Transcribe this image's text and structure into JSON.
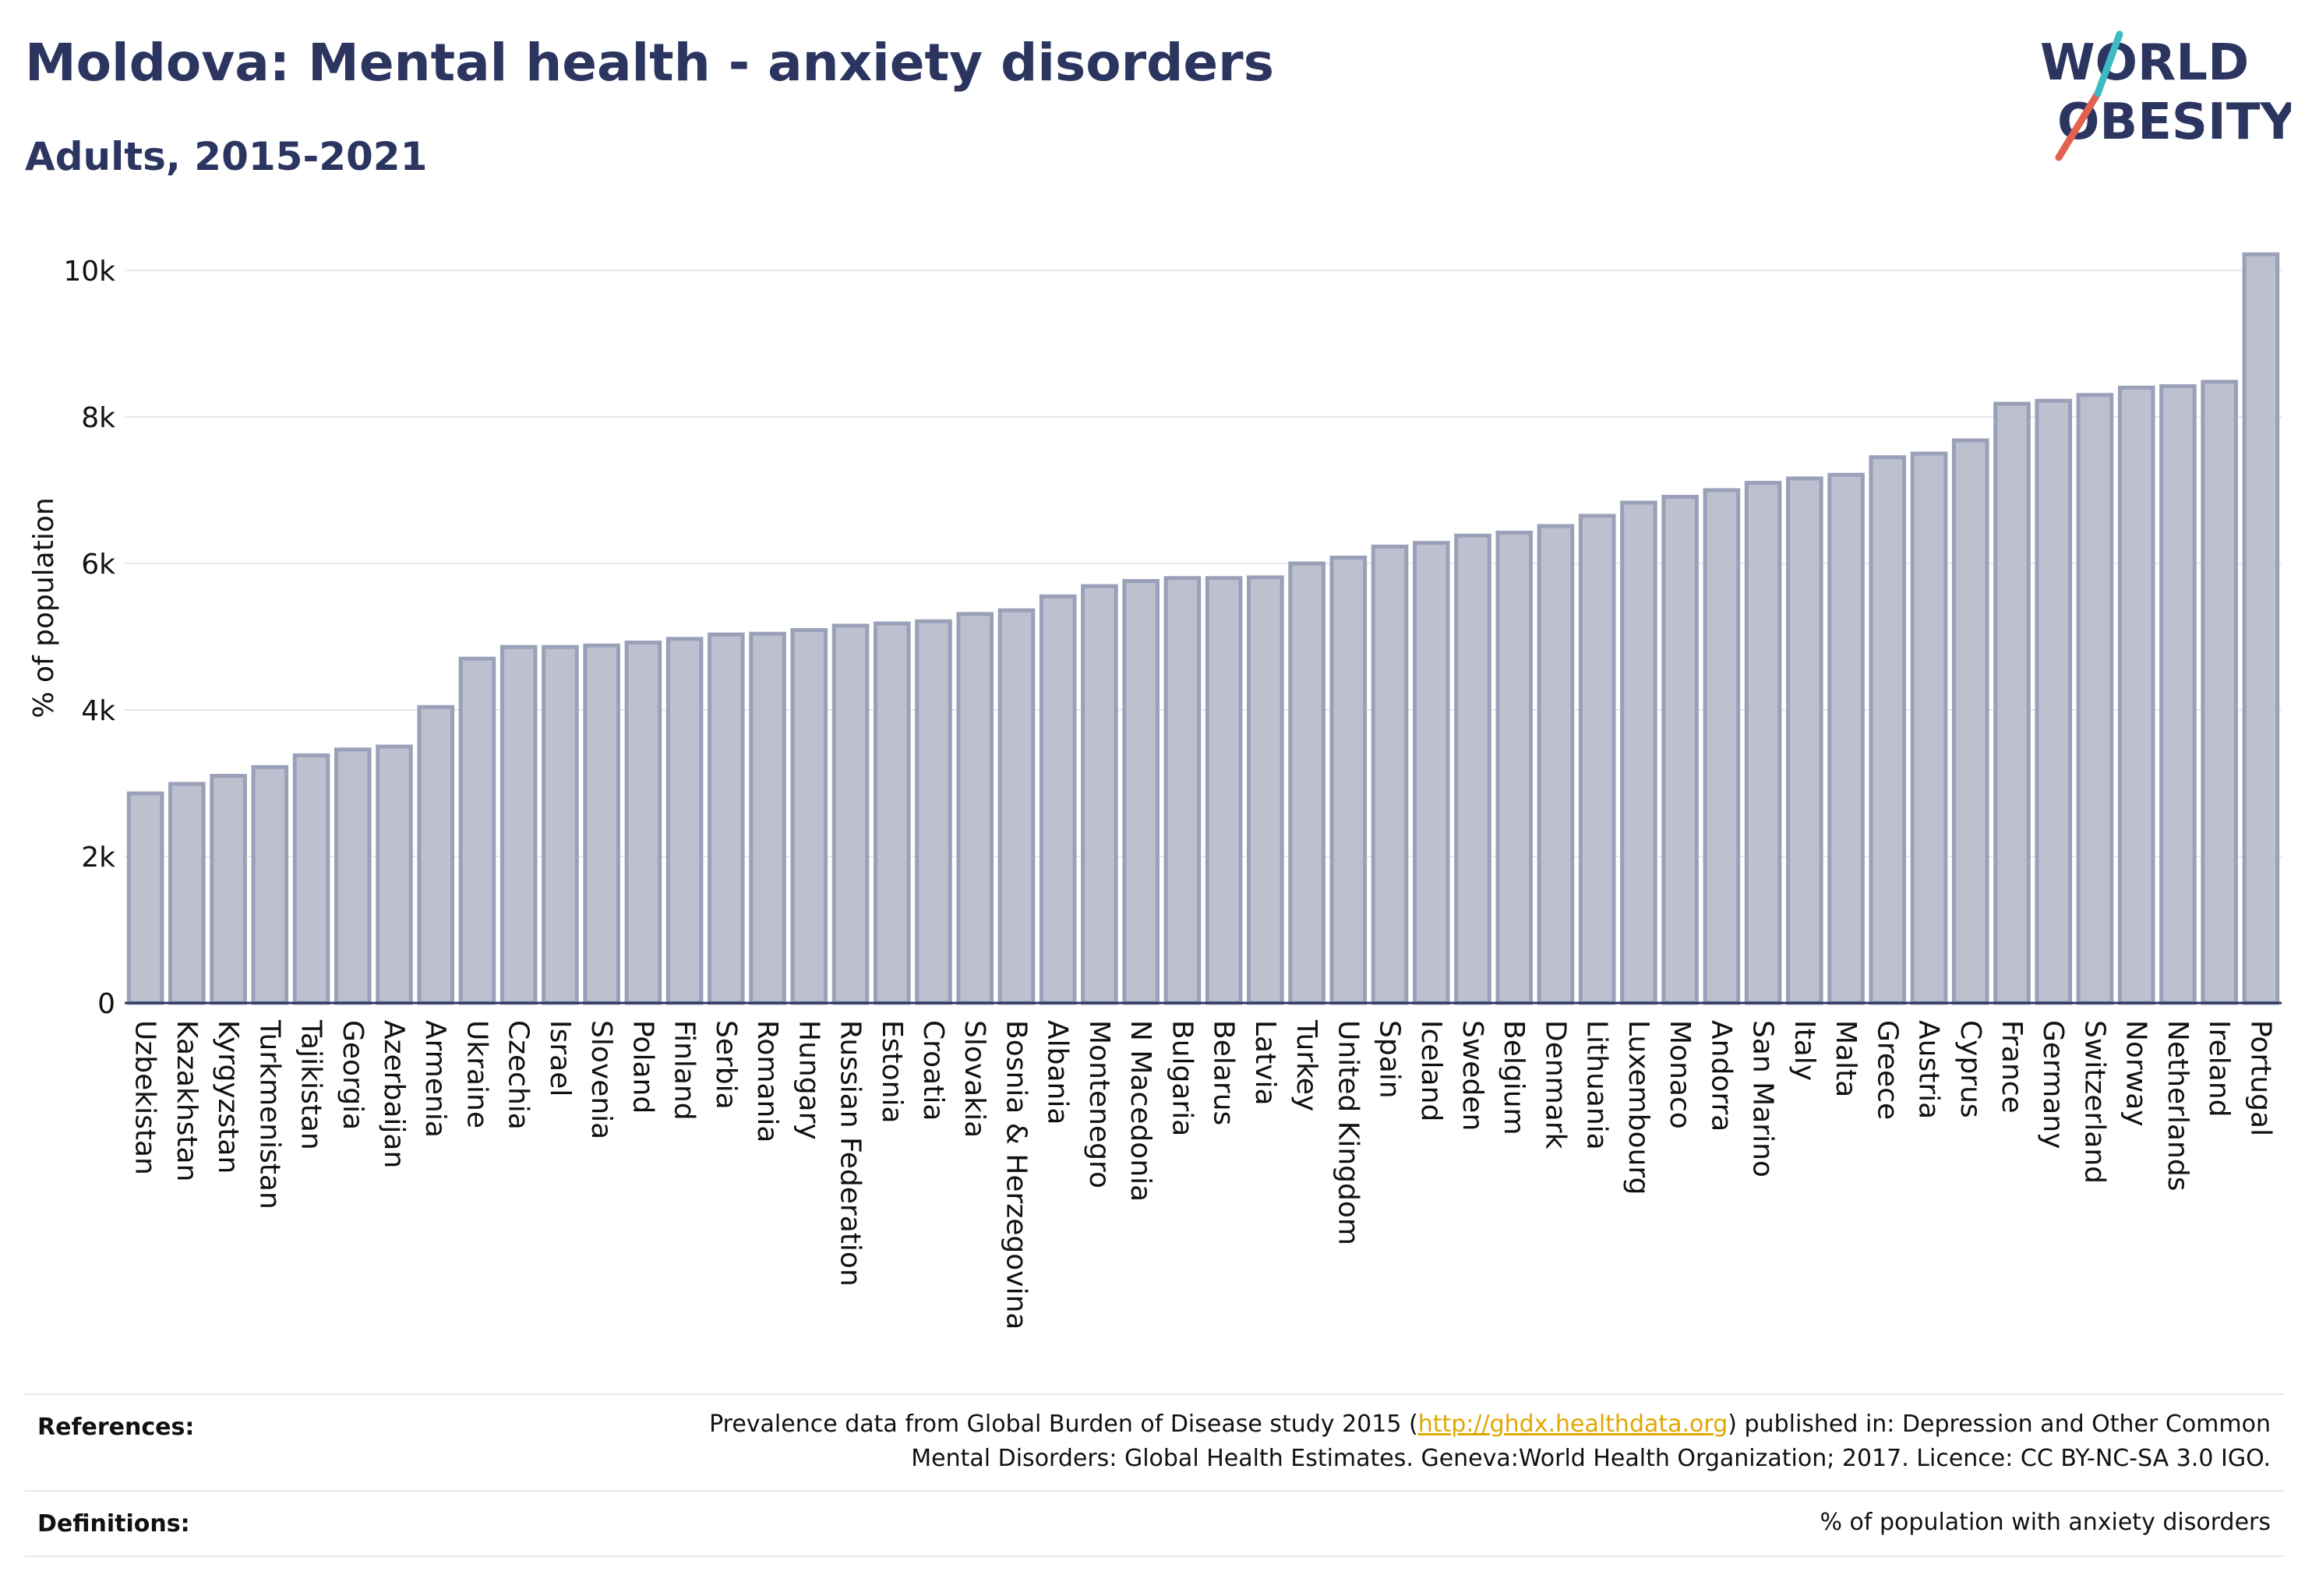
{
  "header": {
    "title": "Moldova: Mental health - anxiety disorders",
    "subtitle": "Adults, 2015-2021"
  },
  "logo": {
    "line1": "WORLD",
    "line2": "OBESITY",
    "text_color": "#2b3560",
    "slash_colors": [
      "#e4604e",
      "#3fb9c2"
    ]
  },
  "colors": {
    "bar_fill": "#bcc0cf",
    "bar_stroke": "#9aa0b8",
    "grid": "#e6e8ee",
    "axis": "#2b3560"
  },
  "chart_data": {
    "type": "bar",
    "ylabel": "% of population",
    "xlabel": "",
    "ylim": [
      0,
      10500
    ],
    "yticks": [
      0,
      2000,
      4000,
      6000,
      8000,
      10000
    ],
    "ytick_labels": [
      "0",
      "2k",
      "4k",
      "6k",
      "8k",
      "10k"
    ],
    "grid": true,
    "categories": [
      "Uzbekistan",
      "Kazakhstan",
      "Kyrgyzstan",
      "Turkmenistan",
      "Tajikistan",
      "Georgia",
      "Azerbaijan",
      "Armenia",
      "Ukraine",
      "Czechia",
      "Israel",
      "Slovenia",
      "Poland",
      "Finland",
      "Serbia",
      "Romania",
      "Hungary",
      "Russian Federation",
      "Estonia",
      "Croatia",
      "Slovakia",
      "Bosnia & Herzegovina",
      "Albania",
      "Montenegro",
      "N Macedonia",
      "Bulgaria",
      "Belarus",
      "Latvia",
      "Turkey",
      "United Kingdom",
      "Spain",
      "Iceland",
      "Sweden",
      "Belgium",
      "Denmark",
      "Lithuania",
      "Luxembourg",
      "Monaco",
      "Andorra",
      "San Marino",
      "Italy",
      "Malta",
      "Greece",
      "Austria",
      "Cyprus",
      "France",
      "Germany",
      "Switzerland",
      "Norway",
      "Netherlands",
      "Ireland",
      "Portugal"
    ],
    "values": [
      2860,
      2990,
      3100,
      3220,
      3380,
      3460,
      3500,
      4040,
      4700,
      4860,
      4860,
      4880,
      4920,
      4970,
      5030,
      5040,
      5090,
      5150,
      5180,
      5210,
      5310,
      5360,
      5550,
      5690,
      5760,
      5800,
      5800,
      5810,
      6000,
      6080,
      6230,
      6280,
      6380,
      6420,
      6510,
      6650,
      6830,
      6910,
      7000,
      7100,
      7160,
      7210,
      7450,
      7500,
      7680,
      8180,
      8220,
      8300,
      8400,
      8420,
      8480,
      10220
    ]
  },
  "footer": {
    "references_label": "References:",
    "references_text_before": "Prevalence data from Global Burden of Disease study 2015 (",
    "references_link": "http://ghdx.healthdata.org",
    "references_text_after": ") published in: Depression and Other Common",
    "references_line2": "Mental Disorders: Global Health Estimates. Geneva:World Health Organization; 2017. Licence: CC BY-NC-SA 3.0 IGO.",
    "definitions_label": "Definitions:",
    "definitions_text": "% of population with anxiety disorders"
  }
}
